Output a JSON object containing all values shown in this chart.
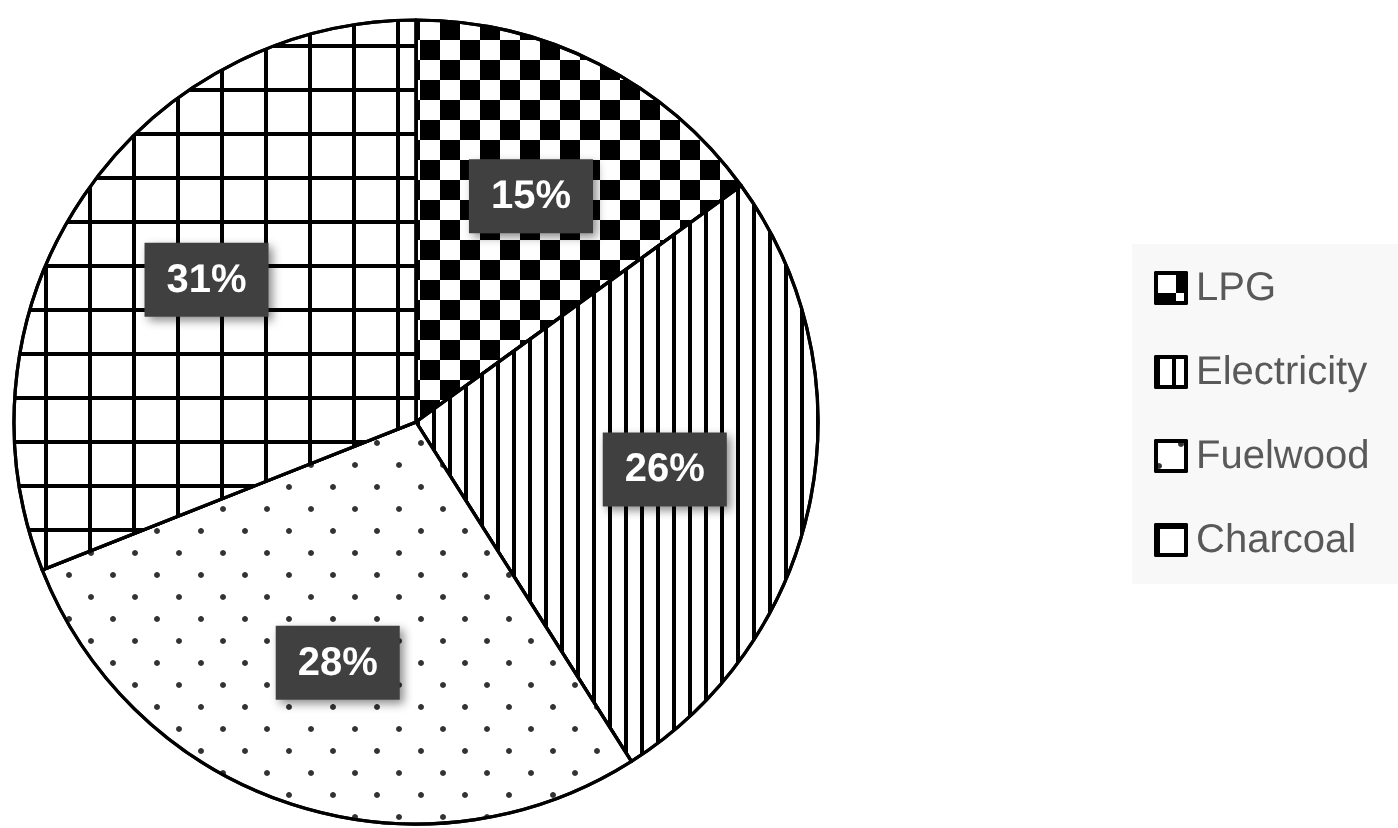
{
  "chart_data": {
    "type": "pie",
    "categories": [
      "LPG",
      "Electricity",
      "Fuelwood",
      "Charcoal"
    ],
    "values": [
      15,
      26,
      28,
      31
    ],
    "colors": [
      "#ffffff",
      "#ffffff",
      "#ffffff",
      "#ffffff"
    ],
    "value_labels": [
      "15%",
      "26%",
      "28%",
      "31%"
    ],
    "legend": "right"
  }
}
